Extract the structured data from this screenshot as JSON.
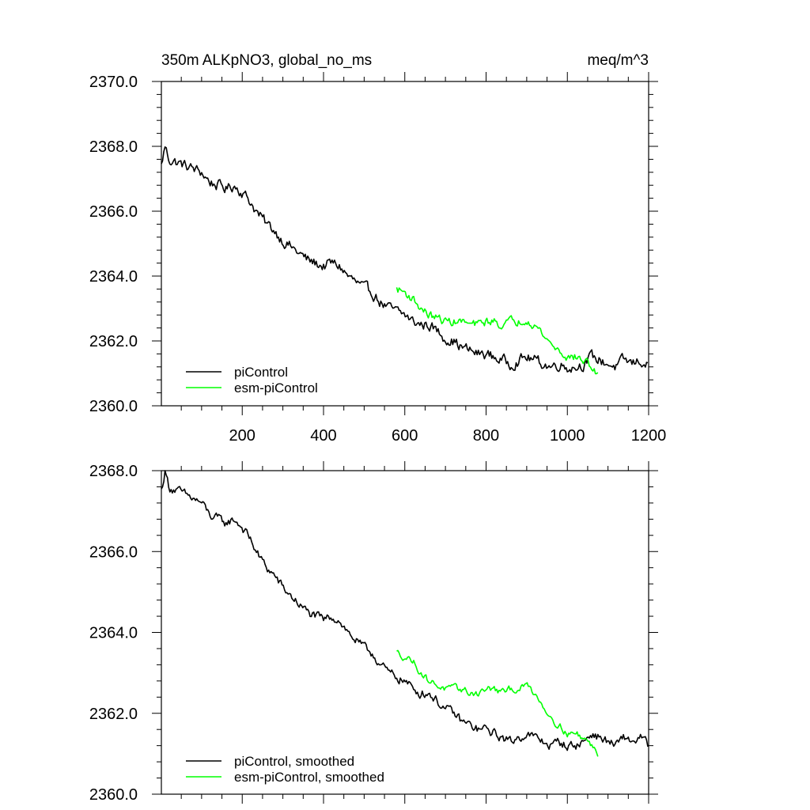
{
  "chart_data": [
    {
      "type": "line",
      "title_left": "350m ALKpNO3, global_no_ms",
      "title_right": "meq/m^3",
      "xlabel": "",
      "ylabel": "",
      "xlim": [
        1,
        1200
      ],
      "ylim": [
        2360.0,
        2370.0
      ],
      "x_ticks": [
        200,
        400,
        600,
        800,
        1000,
        1200
      ],
      "x_tick_labels": [
        "200",
        "400",
        "600",
        "800",
        "1000",
        "1200"
      ],
      "y_ticks": [
        2360,
        2362,
        2364,
        2366,
        2368,
        2370
      ],
      "y_tick_labels": [
        "2360.0",
        "2362.0",
        "2364.0",
        "2366.0",
        "2368.0",
        "2370.0"
      ],
      "legend_position": "bottom-left",
      "series": [
        {
          "name": "piControl",
          "color": "#000000",
          "x": [
            1,
            10,
            20,
            40,
            60,
            80,
            100,
            120,
            140,
            160,
            180,
            200,
            220,
            240,
            260,
            280,
            300,
            320,
            340,
            360,
            380,
            400,
            420,
            440,
            460,
            480,
            500,
            520,
            540,
            560,
            580,
            600,
            620,
            640,
            660,
            680,
            700,
            720,
            740,
            760,
            780,
            800,
            820,
            840,
            860,
            880,
            900,
            920,
            940,
            960,
            980,
            1000,
            1020,
            1040,
            1060,
            1080,
            1100,
            1120,
            1140,
            1160,
            1180,
            1200
          ],
          "values": [
            2367.4,
            2368.0,
            2367.6,
            2367.5,
            2367.4,
            2367.3,
            2367.2,
            2366.9,
            2366.8,
            2366.7,
            2366.8,
            2366.6,
            2366.3,
            2365.9,
            2365.6,
            2365.4,
            2365.1,
            2364.9,
            2364.7,
            2364.5,
            2364.4,
            2364.3,
            2364.4,
            2364.3,
            2364.0,
            2363.8,
            2363.6,
            2363.5,
            2363.2,
            2363.0,
            2362.9,
            2362.8,
            2362.6,
            2362.5,
            2362.5,
            2362.3,
            2362.1,
            2362.0,
            2361.8,
            2361.7,
            2361.6,
            2361.6,
            2361.5,
            2361.4,
            2361.3,
            2361.4,
            2361.5,
            2361.4,
            2361.3,
            2361.2,
            2361.3,
            2361.2,
            2361.2,
            2361.3,
            2361.5,
            2361.4,
            2361.3,
            2361.2,
            2361.4,
            2361.3,
            2361.4,
            2361.2
          ],
          "noise": 0.18
        },
        {
          "name": "esm-piControl",
          "color": "#00ff00",
          "x": [
            580,
            600,
            620,
            640,
            660,
            680,
            700,
            720,
            740,
            760,
            780,
            800,
            820,
            840,
            860,
            880,
            900,
            920,
            940,
            960,
            980,
            1000,
            1020,
            1040,
            1060,
            1075
          ],
          "values": [
            2363.6,
            2363.5,
            2363.3,
            2363.0,
            2362.8,
            2362.7,
            2362.6,
            2362.6,
            2362.6,
            2362.5,
            2362.5,
            2362.6,
            2362.6,
            2362.5,
            2362.6,
            2362.6,
            2362.7,
            2362.5,
            2362.2,
            2361.9,
            2361.7,
            2361.5,
            2361.5,
            2361.4,
            2361.2,
            2360.9
          ],
          "noise": 0.14
        }
      ]
    },
    {
      "type": "line",
      "xlim": [
        1,
        1200
      ],
      "ylim": [
        2360.0,
        2368.0
      ],
      "x_ticks": [
        200,
        400,
        600,
        800,
        1000,
        1200
      ],
      "y_ticks": [
        2360,
        2362,
        2364,
        2366,
        2368
      ],
      "y_tick_labels": [
        "2360.0",
        "2362.0",
        "2364.0",
        "2366.0",
        "2368.0"
      ],
      "legend_position": "bottom-left",
      "series": [
        {
          "name": "piControl, smoothed",
          "color": "#000000",
          "x": [
            1,
            10,
            20,
            40,
            60,
            80,
            100,
            120,
            140,
            160,
            180,
            200,
            220,
            240,
            260,
            280,
            300,
            320,
            340,
            360,
            380,
            400,
            420,
            440,
            460,
            480,
            500,
            520,
            540,
            560,
            580,
            600,
            620,
            640,
            660,
            680,
            700,
            720,
            740,
            760,
            780,
            800,
            820,
            840,
            860,
            880,
            900,
            920,
            940,
            960,
            980,
            1000,
            1020,
            1040,
            1060,
            1080,
            1100,
            1120,
            1140,
            1160,
            1180,
            1200
          ],
          "values": [
            2367.5,
            2368.0,
            2367.6,
            2367.5,
            2367.4,
            2367.3,
            2367.2,
            2366.9,
            2366.8,
            2366.7,
            2366.8,
            2366.6,
            2366.3,
            2365.9,
            2365.6,
            2365.4,
            2365.1,
            2364.9,
            2364.7,
            2364.5,
            2364.4,
            2364.3,
            2364.4,
            2364.3,
            2364.0,
            2363.8,
            2363.6,
            2363.5,
            2363.2,
            2363.0,
            2362.9,
            2362.8,
            2362.6,
            2362.5,
            2362.5,
            2362.3,
            2362.1,
            2362.0,
            2361.8,
            2361.7,
            2361.6,
            2361.6,
            2361.5,
            2361.4,
            2361.3,
            2361.4,
            2361.5,
            2361.4,
            2361.3,
            2361.2,
            2361.3,
            2361.2,
            2361.2,
            2361.3,
            2361.5,
            2361.4,
            2361.3,
            2361.2,
            2361.4,
            2361.3,
            2361.4,
            2361.2
          ],
          "noise": 0.12
        },
        {
          "name": "esm-piControl, smoothed",
          "color": "#00ff00",
          "x": [
            580,
            600,
            620,
            640,
            660,
            680,
            700,
            720,
            740,
            760,
            780,
            800,
            820,
            840,
            860,
            880,
            900,
            920,
            940,
            960,
            980,
            1000,
            1020,
            1040,
            1060,
            1075
          ],
          "values": [
            2363.5,
            2363.4,
            2363.3,
            2363.0,
            2362.8,
            2362.7,
            2362.6,
            2362.6,
            2362.6,
            2362.5,
            2362.5,
            2362.6,
            2362.6,
            2362.5,
            2362.6,
            2362.6,
            2362.7,
            2362.5,
            2362.2,
            2361.9,
            2361.7,
            2361.5,
            2361.5,
            2361.4,
            2361.2,
            2361.0
          ],
          "noise": 0.09
        }
      ]
    }
  ]
}
